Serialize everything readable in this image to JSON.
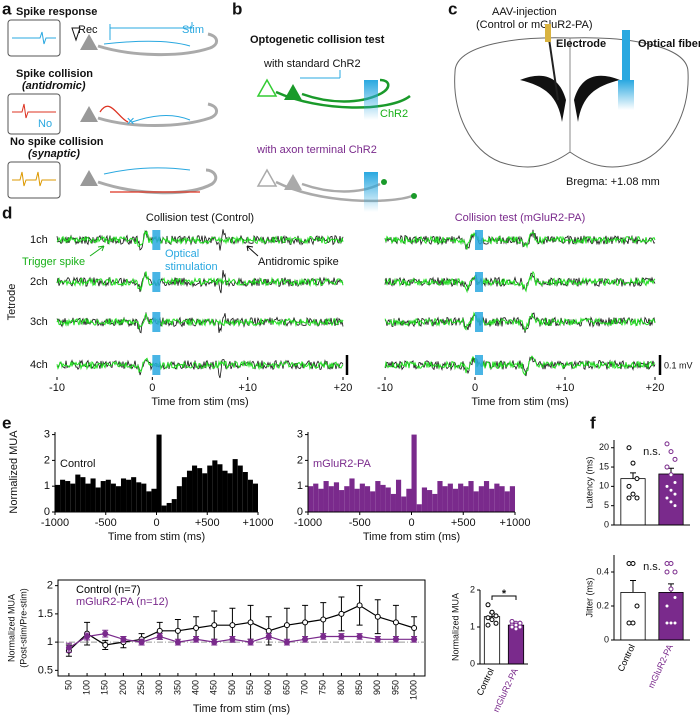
{
  "panels": [
    "a",
    "b",
    "c",
    "d",
    "e",
    "f"
  ],
  "diagrams": {
    "a": {
      "texts": [
        "Spike response",
        "Rec",
        "Stim",
        "Spike collision",
        "(antidromic)",
        "No",
        "No spike collision",
        "(synaptic)"
      ]
    },
    "b": {
      "texts": [
        "Optogenetic collision test",
        "with standard ChR2",
        "ChR2",
        "with axon terminal ChR2"
      ]
    },
    "c": {
      "texts": [
        "AAV-injection",
        "(Control or mGluR2-PA)",
        "Electrode",
        "Optical fiber",
        "Bregma: +1.08 mm"
      ]
    }
  },
  "chart_data": [
    {
      "type": "trace",
      "title": "Collision test (Control)",
      "xlim": [
        -10,
        20
      ],
      "xticks": [
        -10,
        0,
        {
          "value": 10,
          "label": "+10"
        },
        {
          "value": 20,
          "label": "+20"
        }
      ],
      "xlabel": "Time from stim (ms)",
      "channels": [
        "1ch",
        "2ch",
        "3ch",
        "4ch"
      ],
      "ylabel": "Tetrode",
      "annotations": [
        "Trigger spike",
        "Optical",
        "stimulation",
        "Antidromic spike"
      ]
    },
    {
      "type": "trace",
      "title": "Collision test (mGluR2-PA)",
      "xlim": [
        -10,
        20
      ],
      "xticks": [
        -10,
        0,
        {
          "value": 10,
          "label": "+10"
        },
        {
          "value": 20,
          "label": "+20"
        }
      ],
      "xlabel": "Time from stim (ms)",
      "scale_label": "0.1 mV"
    },
    {
      "type": "histogram",
      "title": "Control",
      "color": "#000000",
      "ylabel": "Normalized MUA",
      "xlabel": "Time from stim (ms)",
      "ylim": [
        0,
        3.1
      ],
      "yticks": [
        0,
        1,
        2,
        3
      ],
      "xlim": [
        -1000,
        1000
      ],
      "xticks": [
        -1000,
        -500,
        0,
        {
          "value": 500,
          "label": "+500"
        },
        {
          "value": 1000,
          "label": "+1000"
        }
      ],
      "bins": [
        -1000,
        -950,
        -900,
        -850,
        -800,
        -750,
        -700,
        -650,
        -600,
        -550,
        -500,
        -450,
        -400,
        -350,
        -300,
        -250,
        -200,
        -150,
        -100,
        -50,
        0,
        50,
        100,
        150,
        200,
        250,
        300,
        350,
        400,
        450,
        500,
        550,
        600,
        650,
        700,
        750,
        800,
        850,
        900,
        950,
        1000
      ],
      "values": [
        1.05,
        1.25,
        1.2,
        1.1,
        1.45,
        1.35,
        1.1,
        1.3,
        0.95,
        1.2,
        1.25,
        1.1,
        1.0,
        1.3,
        1.25,
        1.35,
        1.15,
        1.1,
        0.8,
        0.9,
        3.0,
        0.25,
        0.35,
        0.5,
        1.0,
        1.35,
        1.6,
        1.8,
        1.7,
        1.5,
        1.8,
        2.0,
        1.85,
        1.6,
        1.5,
        2.05,
        1.8,
        1.55,
        1.25,
        1.1
      ]
    },
    {
      "type": "histogram",
      "title": "mGluR2-PA",
      "color": "#7a2a8c",
      "xlabel": "Time from stim (ms)",
      "ylim": [
        0,
        3.1
      ],
      "yticks": [
        0,
        1,
        2,
        3
      ],
      "xlim": [
        -1000,
        1000
      ],
      "xticks": [
        -1000,
        -500,
        0,
        {
          "value": 500,
          "label": "+500"
        },
        {
          "value": 1000,
          "label": "+1000"
        }
      ],
      "bins": [
        -1000,
        -950,
        -900,
        -850,
        -800,
        -750,
        -700,
        -650,
        -600,
        -550,
        -500,
        -450,
        -400,
        -350,
        -300,
        -250,
        -200,
        -150,
        -100,
        -50,
        0,
        50,
        100,
        150,
        200,
        250,
        300,
        350,
        400,
        450,
        500,
        550,
        600,
        650,
        700,
        750,
        800,
        850,
        900,
        950,
        1000
      ],
      "values": [
        1.0,
        1.1,
        0.9,
        1.2,
        1.0,
        1.15,
        0.85,
        1.0,
        1.3,
        0.9,
        1.1,
        1.0,
        0.8,
        1.2,
        1.05,
        0.95,
        0.7,
        1.25,
        0.6,
        0.9,
        3.0,
        0.3,
        0.95,
        0.85,
        0.7,
        1.2,
        1.0,
        1.1,
        0.9,
        1.1,
        1.0,
        1.2,
        0.8,
        1.0,
        1.2,
        0.9,
        1.1,
        1.0,
        0.8,
        1.0
      ]
    },
    {
      "type": "line",
      "ylabel": [
        "Normalized MUA",
        "(Post-stim/Pre-stim)"
      ],
      "xlabel": "Time from stim (ms)",
      "ylim": [
        0.4,
        2.1
      ],
      "yticks": [
        0.5,
        1,
        1.5,
        2
      ],
      "xlim": [
        20,
        1030
      ],
      "reference": 1,
      "x": [
        50,
        100,
        150,
        200,
        250,
        300,
        350,
        400,
        450,
        500,
        550,
        600,
        650,
        700,
        750,
        800,
        850,
        900,
        950,
        1000
      ],
      "xticks": [
        50,
        100,
        150,
        200,
        250,
        300,
        350,
        400,
        450,
        500,
        550,
        600,
        650,
        700,
        750,
        800,
        850,
        900,
        950,
        1000
      ],
      "series": [
        {
          "name": "Control (n=7)",
          "color": "#000000",
          "values": [
            0.85,
            1.15,
            0.95,
            1.0,
            1.05,
            1.2,
            1.2,
            1.25,
            1.3,
            1.3,
            1.35,
            1.2,
            1.3,
            1.35,
            1.4,
            1.5,
            1.65,
            1.45,
            1.35,
            1.25
          ],
          "errors": [
            0.1,
            0.2,
            0.08,
            0.1,
            0.1,
            0.15,
            0.2,
            0.2,
            0.25,
            0.3,
            0.3,
            0.25,
            0.3,
            0.3,
            0.3,
            0.3,
            0.35,
            0.3,
            0.3,
            0.2
          ]
        },
        {
          "name": "mGluR2-PA (n=12)",
          "color": "#7a2a8c",
          "values": [
            0.9,
            1.1,
            1.15,
            1.05,
            1.0,
            1.1,
            1.0,
            1.05,
            1.0,
            1.05,
            1.0,
            1.1,
            1.0,
            1.05,
            1.1,
            1.1,
            1.1,
            1.05,
            1.05,
            1.05
          ],
          "errors": [
            0.08,
            0.06,
            0.06,
            0.05,
            0.05,
            0.05,
            0.05,
            0.05,
            0.05,
            0.05,
            0.05,
            0.05,
            0.05,
            0.05,
            0.05,
            0.05,
            0.05,
            0.05,
            0.05,
            0.05
          ]
        }
      ]
    },
    {
      "type": "bar",
      "ylabel": "Normalized MUA",
      "ylim": [
        0,
        2
      ],
      "yticks": [
        0,
        1,
        2
      ],
      "categories": [
        "Control",
        "mGluR2-PA"
      ],
      "colors": [
        "#ffffff",
        "#7a2a8c"
      ],
      "values": [
        1.28,
        1.05
      ],
      "errors": [
        0.1,
        0.04
      ],
      "points": [
        [
          1.6,
          1.4,
          1.3,
          1.25,
          1.2,
          1.1,
          1.05
        ],
        [
          1.15,
          1.1,
          1.1,
          1.05,
          1.05,
          1.0,
          1.0,
          1.05,
          1.1,
          1.0,
          0.95,
          1.0
        ]
      ],
      "annotation": "*"
    },
    {
      "type": "bar",
      "ylabel": "Latency (ms)",
      "ylim": [
        0,
        22
      ],
      "yticks": [
        0,
        5,
        10,
        15,
        20
      ],
      "colors": [
        "#ffffff",
        "#7a2a8c"
      ],
      "values": [
        12,
        13.2
      ],
      "errors": [
        1.5,
        1.5
      ],
      "points": [
        [
          20,
          16,
          12,
          10,
          8,
          7,
          7
        ],
        [
          21,
          19,
          17,
          15,
          13,
          11,
          10,
          9,
          8,
          7,
          6,
          5
        ]
      ],
      "annotation": "n.s."
    },
    {
      "type": "bar",
      "ylabel": "Jitter (ms)",
      "ylim": [
        0,
        0.5
      ],
      "yticks": [
        0,
        0.2,
        0.4
      ],
      "categories": [
        "Control",
        "mGluR2-PA"
      ],
      "colors": [
        "#ffffff",
        "#7a2a8c"
      ],
      "values": [
        0.28,
        0.28
      ],
      "errors": [
        0.07,
        0.05
      ],
      "points": [
        [
          0.45,
          0.45,
          0.2,
          0.1,
          0.1
        ],
        [
          0.45,
          0.45,
          0.4,
          0.4,
          0.3,
          0.25,
          0.2,
          0.1,
          0.1,
          0.1
        ]
      ],
      "annotation": "n.s."
    }
  ]
}
